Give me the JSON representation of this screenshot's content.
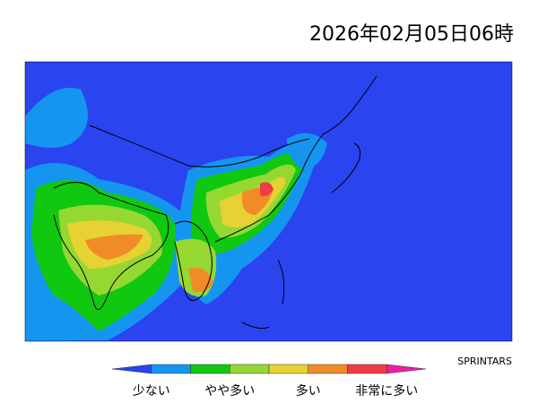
{
  "header": {
    "title": "2026年02月05日06時"
  },
  "map": {
    "source": "SPRINTARS"
  },
  "legend": {
    "colors": [
      "#2a44f0",
      "#1496f0",
      "#10c810",
      "#96d832",
      "#e6d232",
      "#f08c28",
      "#f03c46",
      "#f01ea0"
    ],
    "labels": [
      "少ない",
      "やや多い",
      "多い",
      "非常に多い"
    ]
  }
}
